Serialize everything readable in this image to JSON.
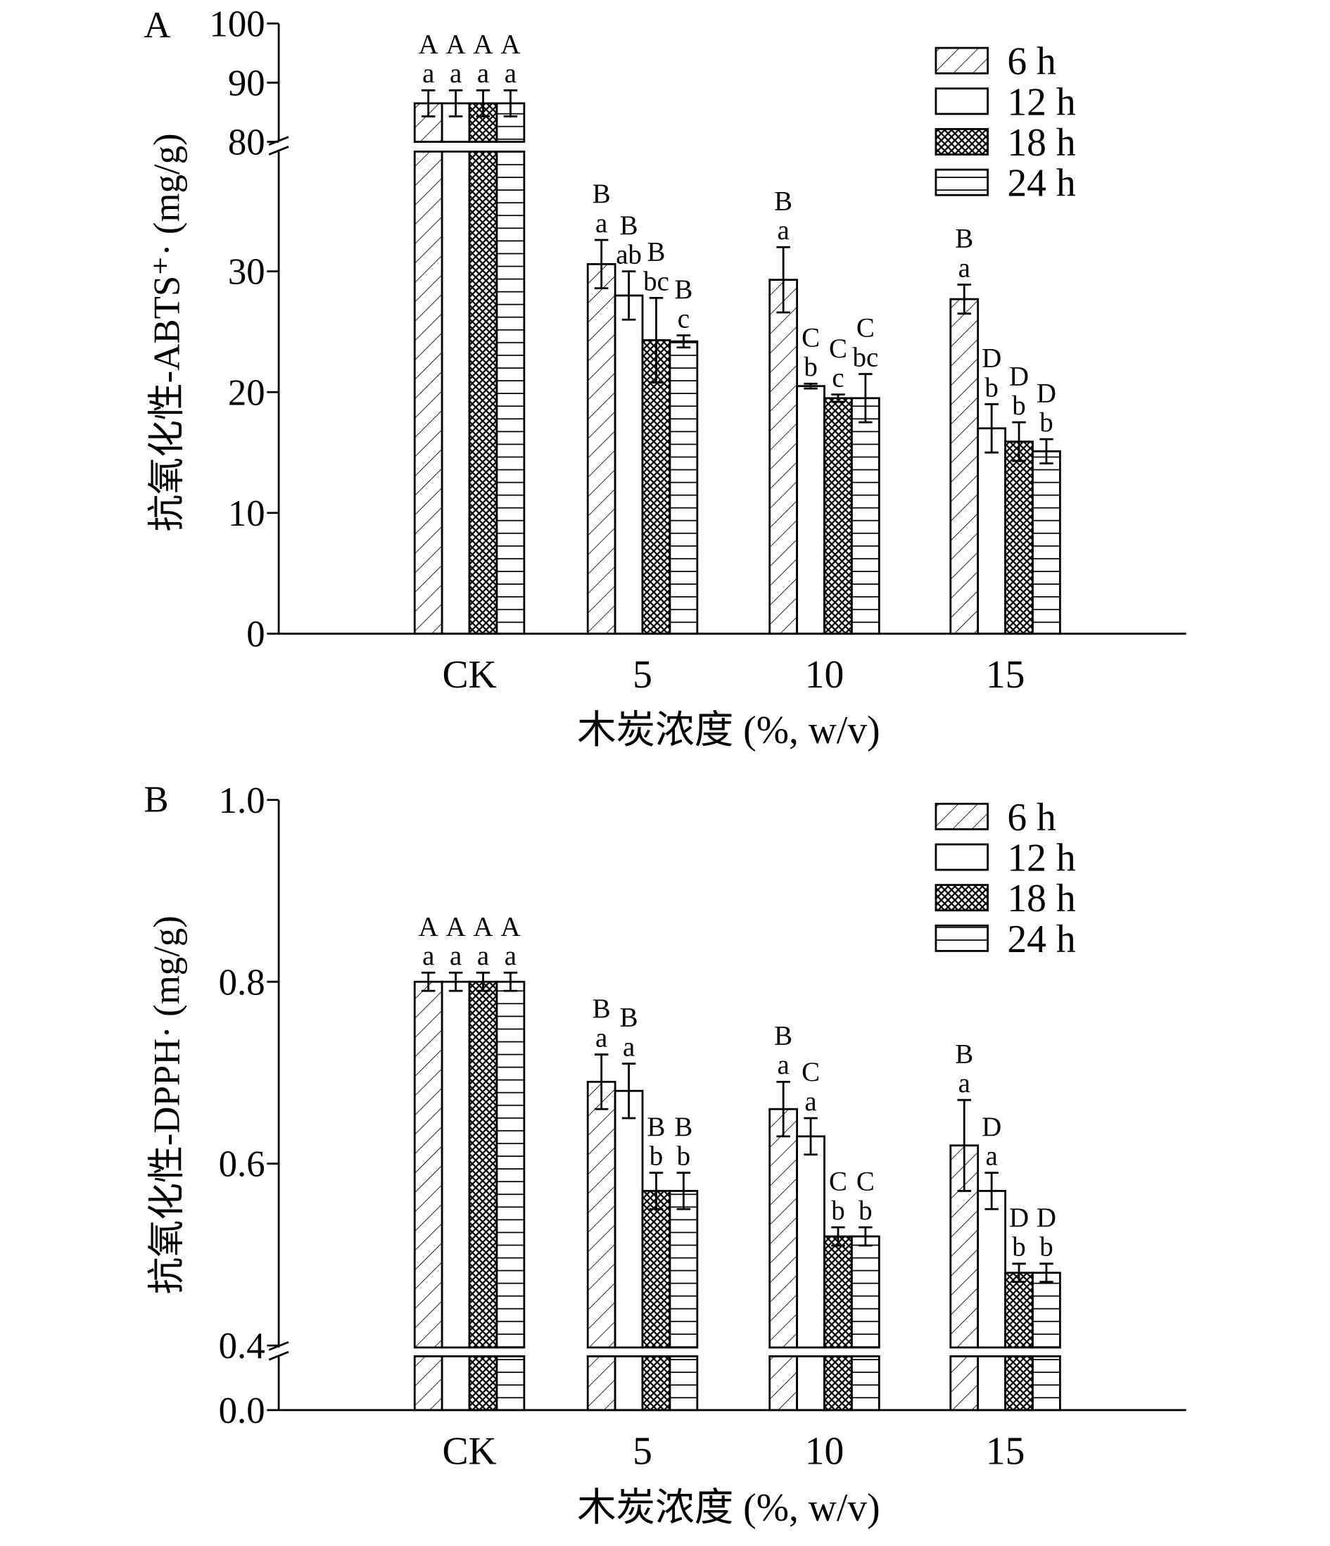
{
  "chart_data": [
    {
      "type": "bar",
      "panel_label": "A",
      "title": "",
      "xlabel": "木炭浓度 (%, w/v)",
      "ylabel": "抗氧化性-ABTS⁺· (mg/g)",
      "categories": [
        "CK",
        "5",
        "10",
        "15"
      ],
      "yticks_lower": [
        "0",
        "10",
        "20",
        "30"
      ],
      "yticks_upper": [
        "80",
        "90",
        "100"
      ],
      "ylim_lower": [
        0,
        40
      ],
      "ylim_upper": [
        80,
        100
      ],
      "axis_break": true,
      "legend_position": "top-right",
      "series": [
        {
          "name": "6 h",
          "pattern": "diagonal",
          "values": [
            86.5,
            30.6,
            29.3,
            27.7
          ],
          "errors": [
            2.2,
            2.0,
            2.7,
            1.2
          ],
          "upper_letters": [
            "A",
            "B",
            "B",
            "B"
          ],
          "lower_letters": [
            "a",
            "a",
            "a",
            "a"
          ]
        },
        {
          "name": "12 h",
          "pattern": "blank",
          "values": [
            86.5,
            28.0,
            20.5,
            17.0
          ],
          "errors": [
            2.2,
            2.0,
            0.2,
            2.0
          ],
          "upper_letters": [
            "A",
            "B",
            "C",
            "D"
          ],
          "lower_letters": [
            "a",
            "ab",
            "b",
            "b"
          ]
        },
        {
          "name": "18 h",
          "pattern": "crosshatch",
          "values": [
            86.5,
            24.3,
            19.5,
            15.9
          ],
          "errors": [
            2.2,
            3.5,
            0.3,
            1.6
          ],
          "upper_letters": [
            "A",
            "B",
            "C",
            "D"
          ],
          "lower_letters": [
            "a",
            "bc",
            "c",
            "b"
          ]
        },
        {
          "name": "24 h",
          "pattern": "horizontal",
          "values": [
            86.5,
            24.2,
            19.5,
            15.1
          ],
          "errors": [
            2.2,
            0.5,
            2.0,
            1.0
          ],
          "upper_letters": [
            "A",
            "B",
            "C",
            "D"
          ],
          "lower_letters": [
            "a",
            "c",
            "bc",
            "b"
          ]
        }
      ]
    },
    {
      "type": "bar",
      "panel_label": "B",
      "title": "",
      "xlabel": "木炭浓度 (%, w/v)",
      "ylabel": "抗氧化性-DPPH· (mg/g)",
      "categories": [
        "CK",
        "5",
        "10",
        "15"
      ],
      "yticks_lower": [
        "0.0"
      ],
      "yticks_upper": [
        "0.4",
        "0.6",
        "0.8",
        "1.0"
      ],
      "ylim_lower": [
        0,
        0.4
      ],
      "ylim_upper": [
        0.4,
        1.0
      ],
      "axis_break": true,
      "legend_position": "top-right",
      "series": [
        {
          "name": "6 h",
          "pattern": "diagonal",
          "values": [
            0.8,
            0.69,
            0.66,
            0.62
          ],
          "errors": [
            0.01,
            0.03,
            0.03,
            0.05
          ],
          "upper_letters": [
            "A",
            "B",
            "B",
            "B"
          ],
          "lower_letters": [
            "a",
            "a",
            "a",
            "a"
          ]
        },
        {
          "name": "12 h",
          "pattern": "blank",
          "values": [
            0.8,
            0.68,
            0.63,
            0.57
          ],
          "errors": [
            0.01,
            0.03,
            0.02,
            0.02
          ],
          "upper_letters": [
            "A",
            "B",
            "C",
            "D"
          ],
          "lower_letters": [
            "a",
            "a",
            "a",
            "a"
          ]
        },
        {
          "name": "18 h",
          "pattern": "crosshatch",
          "values": [
            0.8,
            0.57,
            0.52,
            0.48
          ],
          "errors": [
            0.01,
            0.02,
            0.01,
            0.01
          ],
          "upper_letters": [
            "A",
            "B",
            "C",
            "D"
          ],
          "lower_letters": [
            "a",
            "b",
            "b",
            "b"
          ]
        },
        {
          "name": "24 h",
          "pattern": "horizontal",
          "values": [
            0.8,
            0.57,
            0.52,
            0.48
          ],
          "errors": [
            0.01,
            0.02,
            0.01,
            0.01
          ],
          "upper_letters": [
            "A",
            "B",
            "C",
            "D"
          ],
          "lower_letters": [
            "a",
            "b",
            "b",
            "b"
          ]
        }
      ]
    }
  ]
}
